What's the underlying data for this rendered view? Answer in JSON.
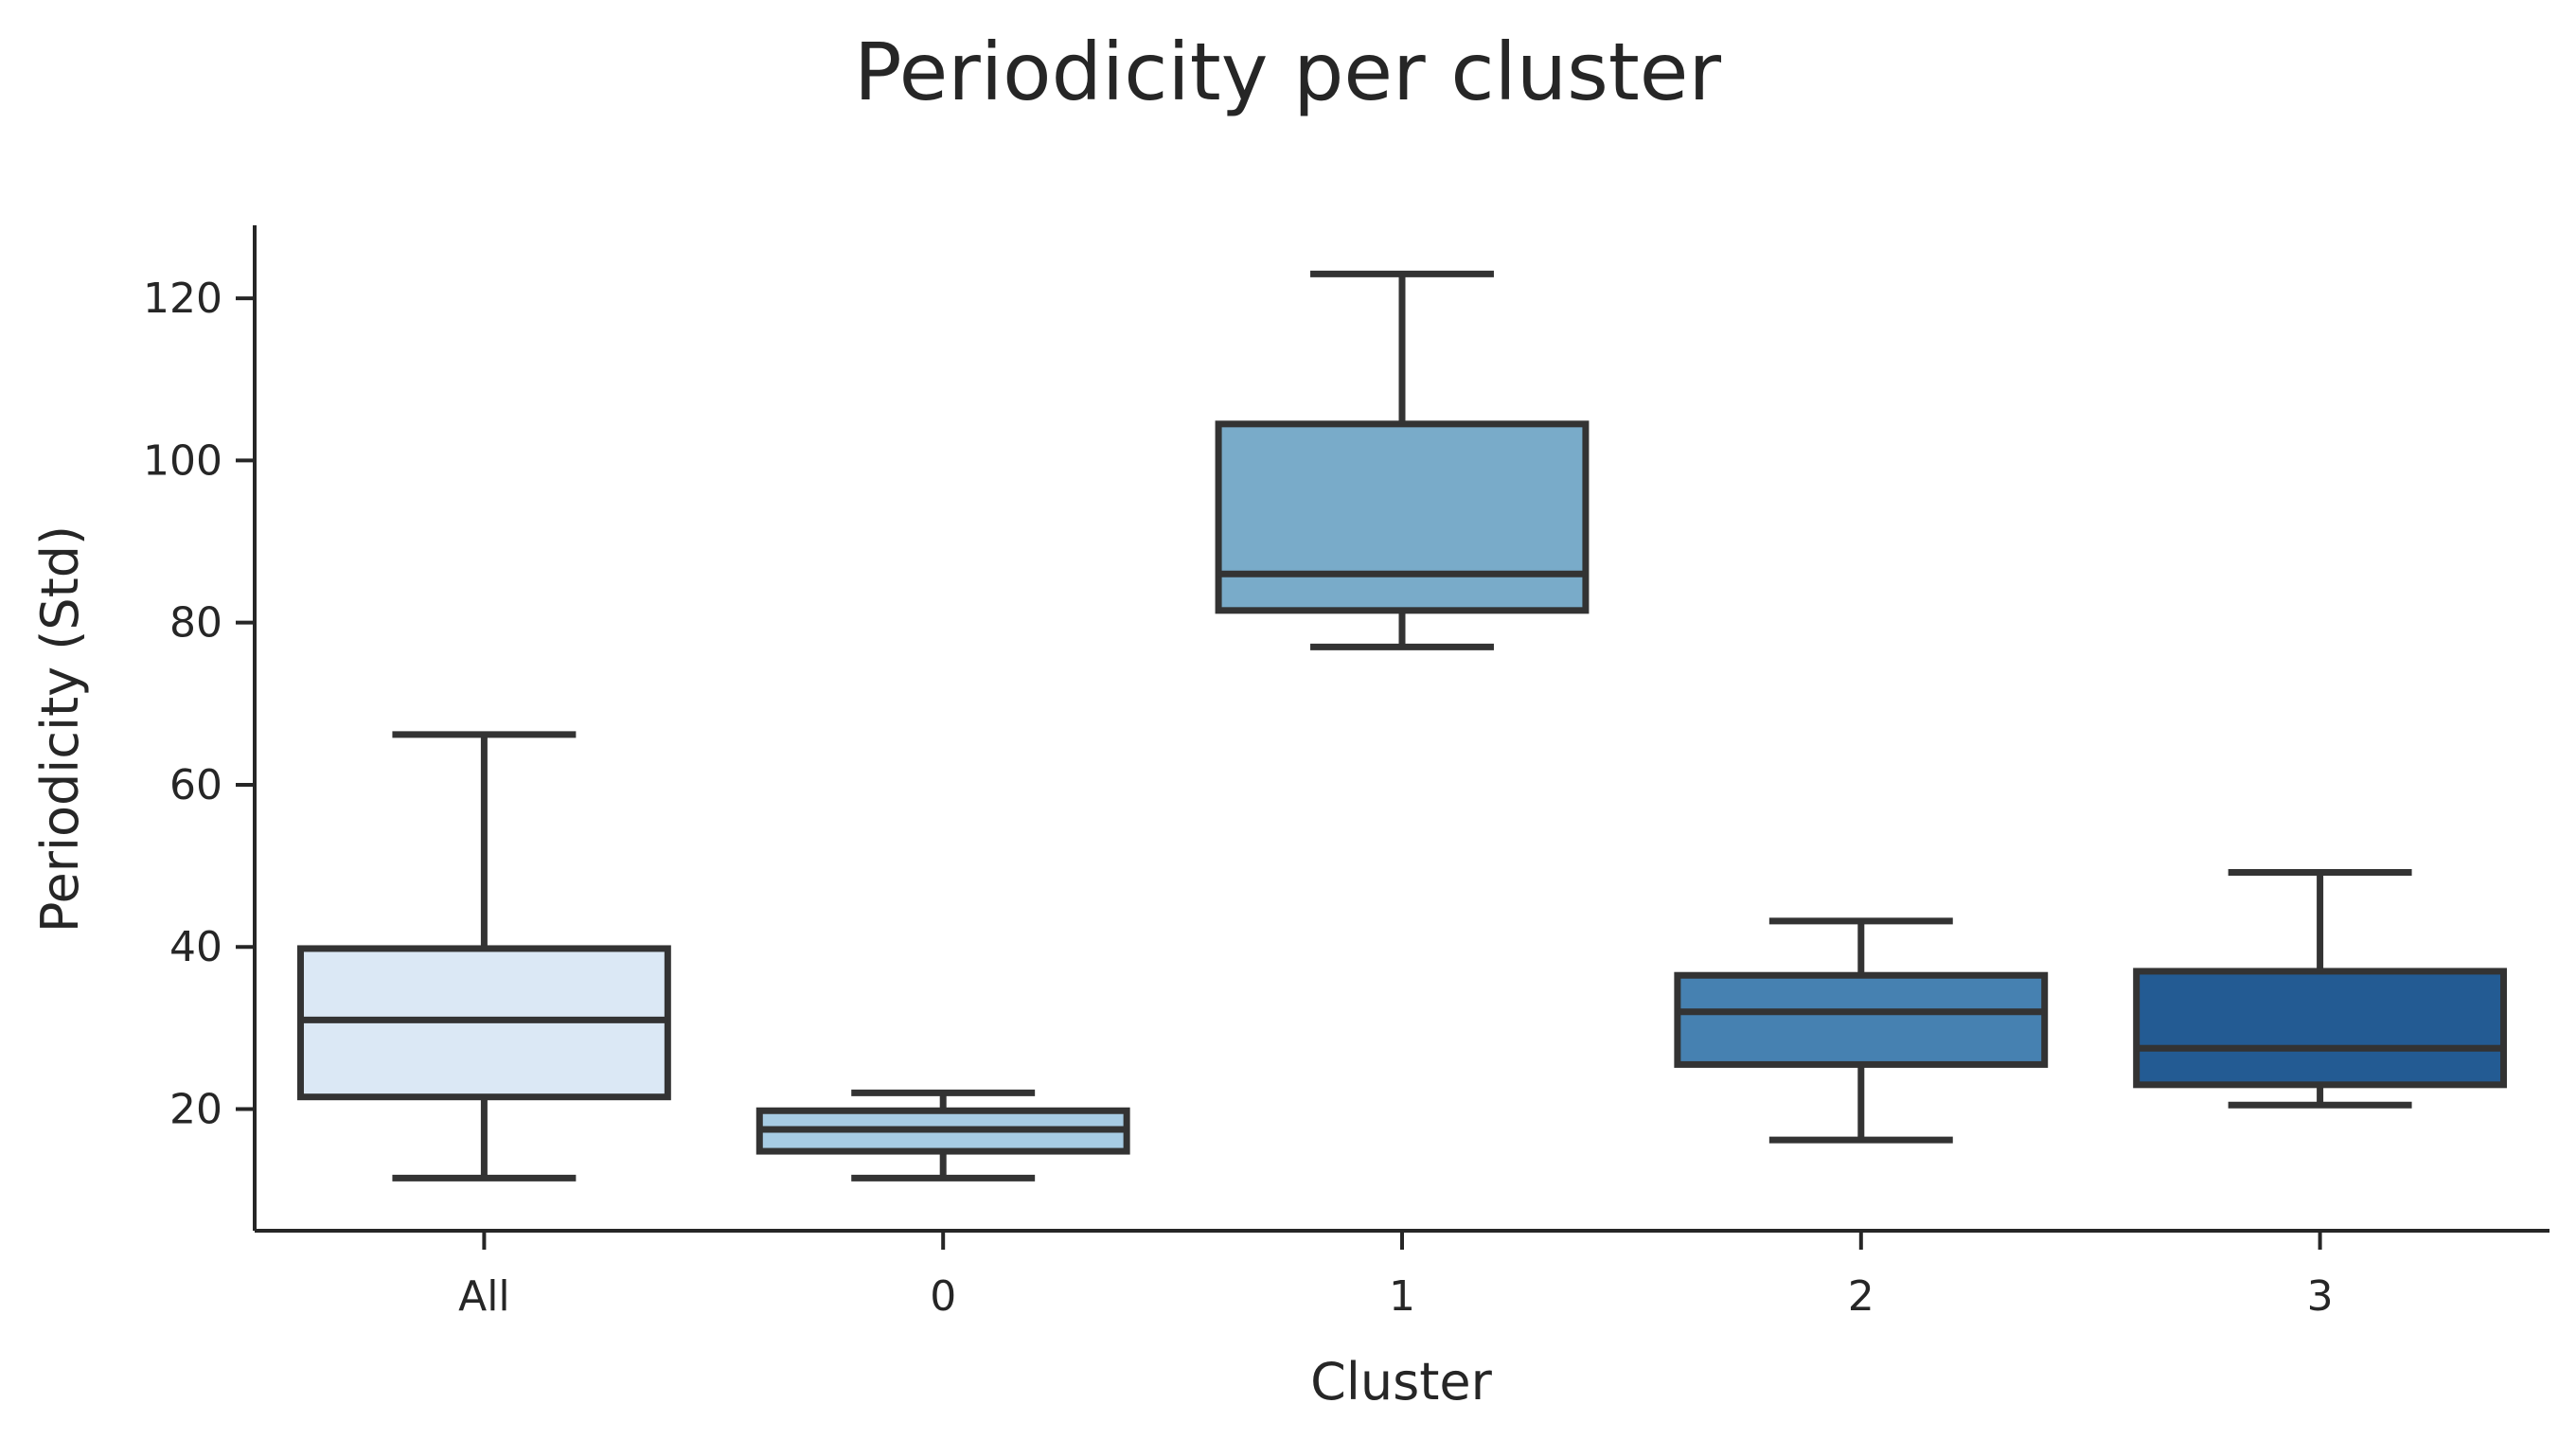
{
  "chart_data": {
    "type": "box",
    "title": "Periodicity per cluster",
    "xlabel": "Cluster",
    "ylabel": "Periodicity (Std)",
    "categories": [
      "All",
      "0",
      "1",
      "2",
      "3"
    ],
    "ylim": [
      5,
      129
    ],
    "yticks": [
      20,
      40,
      60,
      80,
      100,
      120
    ],
    "grid": false,
    "boxes": [
      {
        "category": "All",
        "whislo": 11.5,
        "q1": 21.5,
        "med": 31,
        "q3": 39.8,
        "whishi": 66.2,
        "color": "#dbe8f5"
      },
      {
        "category": "0",
        "whislo": 11.5,
        "q1": 14.8,
        "med": 17.5,
        "q3": 19.8,
        "whishi": 22,
        "color": "#a7cce4"
      },
      {
        "category": "1",
        "whislo": 77,
        "q1": 81.5,
        "med": 86,
        "q3": 104.5,
        "whishi": 123,
        "color": "#79abc9"
      },
      {
        "category": "2",
        "whislo": 16.2,
        "q1": 25.5,
        "med": 32,
        "q3": 36.5,
        "whishi": 43.2,
        "color": "#4681b1"
      },
      {
        "category": "3",
        "whislo": 20.5,
        "q1": 23,
        "med": 27.5,
        "q3": 37,
        "whishi": 49.2,
        "color": "#235b93"
      }
    ]
  }
}
